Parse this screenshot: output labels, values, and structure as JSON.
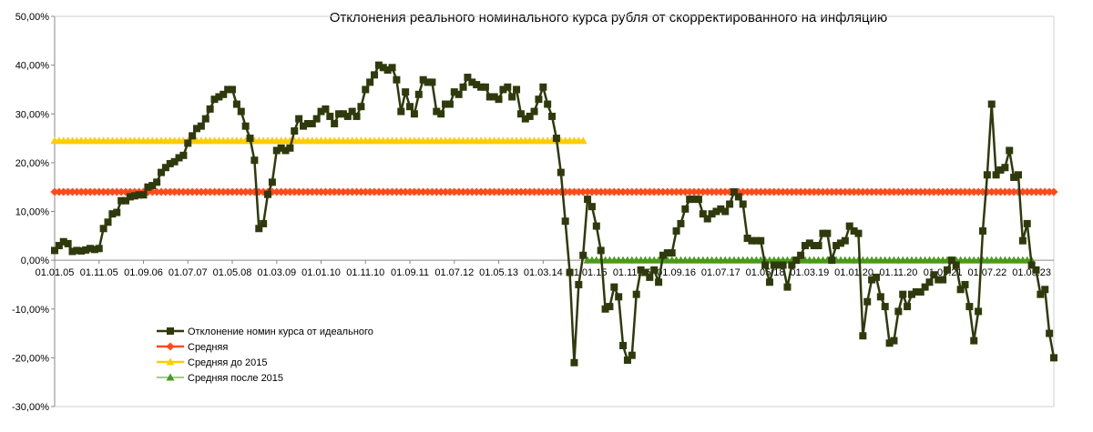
{
  "chart_data": {
    "type": "line",
    "title": "Отклонения реального номинального курса рубля от скорректированного на инфляцию",
    "xlabel": "",
    "ylabel": "",
    "ylim": [
      -30,
      50
    ],
    "y_ticks": [
      "50,00%",
      "40,00%",
      "30,00%",
      "20,00%",
      "10,00%",
      "0,00%",
      "-10,00%",
      "-20,00%",
      "-30,00%"
    ],
    "x_tick_labels": [
      "01.01.05",
      "01.11.05",
      "01.09.06",
      "01.07.07",
      "01.05.08",
      "01.03.09",
      "01.01.10",
      "01.11.10",
      "01.09.11",
      "01.07.12",
      "01.05.13",
      "01.03.14",
      "01.01.15",
      "01.11.15",
      "01.09.16",
      "01.07.17",
      "01.05.18",
      "01.03.19",
      "01.01.20",
      "01.11.20",
      "01.09.21",
      "01.07.22",
      "01.05.23"
    ],
    "grid": false,
    "legend_position": "bottom-left",
    "series": [
      {
        "name": "Отклонение номин курса от идеального",
        "color": "#2f3a0c",
        "marker": "square",
        "start_month": "01.01.05",
        "values": [
          2.0,
          3.0,
          3.8,
          3.4,
          1.8,
          2.0,
          1.9,
          2.1,
          2.4,
          2.2,
          2.4,
          6.5,
          7.8,
          9.5,
          9.8,
          12.2,
          12.2,
          13.0,
          13.2,
          13.4,
          13.4,
          15.0,
          15.3,
          16.0,
          18.0,
          19.0,
          19.8,
          20.2,
          21.0,
          21.5,
          24.0,
          25.5,
          27.0,
          27.5,
          29.0,
          31.0,
          33.0,
          33.5,
          34.0,
          35.0,
          35.0,
          32.0,
          30.5,
          27.5,
          25.0,
          20.5,
          6.5,
          7.5,
          13.5,
          16.0,
          22.5,
          23.0,
          22.5,
          23.0,
          26.5,
          29.0,
          27.5,
          28.0,
          28.0,
          29.0,
          30.5,
          31.0,
          29.5,
          28.0,
          30.0,
          30.0,
          29.5,
          30.5,
          29.5,
          31.5,
          35.0,
          36.5,
          38.0,
          40.0,
          39.5,
          39.0,
          39.5,
          37.0,
          30.5,
          34.5,
          31.5,
          30.0,
          34.0,
          37.0,
          36.5,
          36.5,
          30.5,
          30.0,
          32.0,
          32.0,
          34.5,
          34.0,
          35.5,
          37.5,
          36.5,
          36.0,
          35.5,
          35.5,
          33.5,
          33.5,
          33.0,
          35.0,
          35.5,
          33.5,
          35.0,
          30.0,
          29.0,
          29.5,
          30.5,
          33.0,
          35.5,
          32.0,
          29.5,
          25.0,
          18.0,
          8.0,
          -2.5,
          -21.0,
          -5.0,
          1.0,
          12.5,
          11.0,
          7.0,
          2.0,
          -10.0,
          -9.5,
          -5.5,
          -7.5,
          -17.5,
          -20.5,
          -19.5,
          -7.0,
          -2.0,
          -2.5,
          -3.5,
          -2.0,
          -4.5,
          1.0,
          1.5,
          1.5,
          6.0,
          7.5,
          10.5,
          12.5,
          12.5,
          12.5,
          9.5,
          8.5,
          9.5,
          10.0,
          10.5,
          10.0,
          11.5,
          14.0,
          13.0,
          11.5,
          4.5,
          4.0,
          4.0,
          4.0,
          -1.0,
          -4.5,
          -1.0,
          -1.0,
          -1.0,
          -5.5,
          -1.0,
          0.0,
          1.0,
          3.0,
          3.5,
          3.0,
          3.0,
          5.5,
          5.5,
          0.0,
          3.0,
          3.5,
          4.0,
          7.0,
          6.0,
          5.5,
          -15.5,
          -8.5,
          -4.0,
          -3.5,
          -7.5,
          -9.5,
          -17.0,
          -16.5,
          -10.5,
          -7.0,
          -9.5,
          -7.0,
          -6.5,
          -6.5,
          -5.5,
          -4.5,
          -3.0,
          -4.0,
          -4.0,
          -2.0,
          0.0,
          -1.0,
          -6.0,
          -5.0,
          -9.5,
          -16.5,
          -10.5,
          6.0,
          17.5,
          32.0,
          17.5,
          18.5,
          19.0,
          22.5,
          17.0,
          17.5,
          4.0,
          7.5,
          -1.0,
          -2.0,
          -7.0,
          -6.0,
          -15.0,
          -20.0
        ]
      },
      {
        "name": "Средняя",
        "color": "#ff4a1a",
        "marker": "diamond",
        "value": 14.0
      },
      {
        "name": "Средняя до 2015",
        "color": "#ffcc00",
        "marker": "triangle",
        "value": 24.5,
        "range": [
          "01.01.05",
          "01.12.14"
        ]
      },
      {
        "name": "Средняя  после 2015",
        "color": "#4a9a1a",
        "marker": "triangle",
        "value": 0.0,
        "range": [
          "01.01.15",
          "01.05.23"
        ]
      }
    ]
  }
}
